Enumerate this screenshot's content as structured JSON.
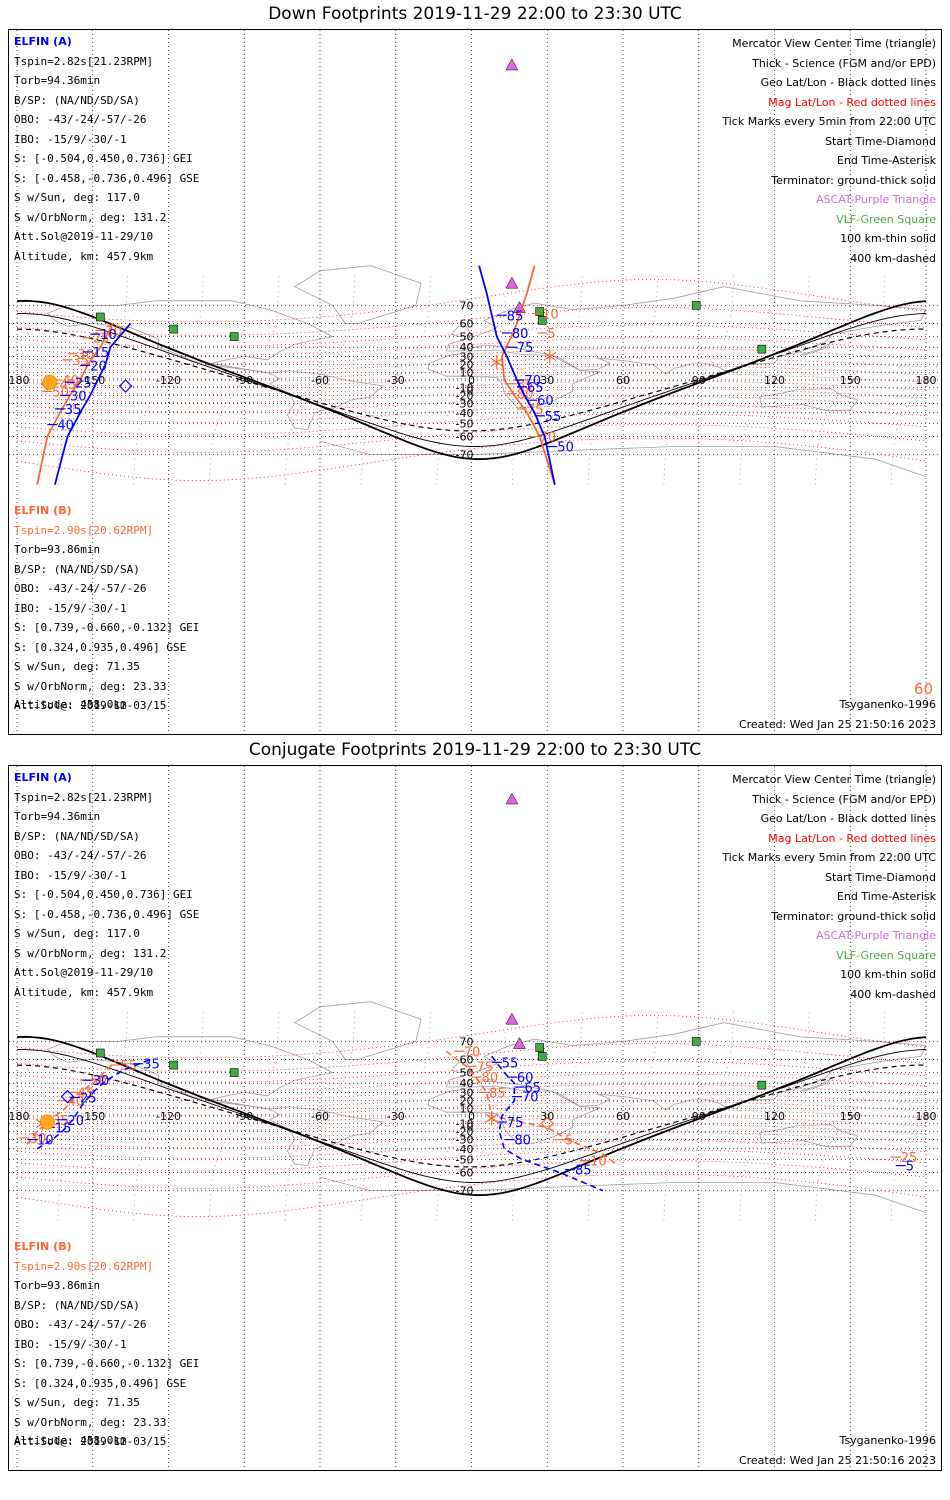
{
  "colors": {
    "elfin_a": "#0000ff",
    "elfin_b": "#ff6633",
    "mag_grid": "#ff0000",
    "geo_grid": "#000000",
    "ascat": "#dd66dd",
    "vlf": "#44aa44",
    "land": "#a0a0a0"
  },
  "panels": [
    {
      "id": "down",
      "title": "Down Footprints 2019-11-29 22:00 to 23:30 UTC",
      "elfin_a": {
        "head": "ELFIN (A)",
        "lines": [
          "Tspin=2.82s[21.23RPM]",
          "Torb=94.36min",
          "B/SP: (NA/ND/SD/SA)",
          "OBO: -43/-24/-57/-26",
          "IBO: -15/9/-30/-1",
          "S: [-0.504,0.450,0.736] GEI",
          "S: [-0.458,-0.736,0.496] GSE",
          "S w/Sun, deg: 117.0",
          "S w/OrbNorm, deg: 131.2",
          "Att.Sol@2019-11-29/10",
          "Altitude, km: 457.9km"
        ]
      },
      "elfin_b": {
        "head": "ELFIN (B)",
        "lines": [
          "Tspin=2.90s[20.62RPM]",
          "Torb=93.86min",
          "B/SP: (NA/ND/SD/SA)",
          "OBO: -43/-24/-57/-26",
          "IBO: -15/9/-30/-1",
          "S: [0.739,-0.660,-0.132] GEI",
          "S: [0.324,0.935,0.496] GSE",
          "S w/Sun, deg: 71.35",
          "S w/OrbNorm, deg: 23.33",
          "Att.Sol@: 2019-12-03/15",
          "Altitude: 458.0km"
        ]
      },
      "corner_label": "60",
      "track_a": {
        "lon": [
          -165,
          -160,
          -155,
          -151,
          -148,
          -145,
          -143,
          -135,
          3,
          6,
          10,
          14,
          18,
          21,
          25,
          29,
          33
        ],
        "lat": [
          -80,
          -60,
          -40,
          -20,
          0,
          20,
          40,
          60,
          90,
          75,
          50,
          30,
          0,
          -20,
          -40,
          -60,
          -80
        ],
        "ticks": [
          {
            "lon": -149,
            "lat": 52,
            "t": "10"
          },
          {
            "lon": -152,
            "lat": 35,
            "t": "15"
          },
          {
            "lon": -153,
            "lat": 19,
            "t": "20"
          },
          {
            "lon": -159,
            "lat": -3,
            "t": "25"
          },
          {
            "lon": -161,
            "lat": -20,
            "t": "30"
          },
          {
            "lon": -163,
            "lat": -36,
            "t": "35"
          },
          {
            "lon": -166,
            "lat": -51,
            "t": "40"
          },
          {
            "lon": 12,
            "lat": 65,
            "t": "85"
          },
          {
            "lon": 14,
            "lat": 53,
            "t": "80"
          },
          {
            "lon": 16,
            "lat": 40,
            "t": "75"
          },
          {
            "lon": 19,
            "lat": 0,
            "t": "70"
          },
          {
            "lon": 20,
            "lat": -9,
            "t": "65"
          },
          {
            "lon": 24,
            "lat": -26,
            "t": "60"
          },
          {
            "lon": 27,
            "lat": -43,
            "t": "55"
          },
          {
            "lon": 32,
            "lat": -66,
            "t": "50"
          }
        ]
      },
      "track_b": {
        "lon": [
          -172,
          -168,
          -163,
          -159,
          -155,
          -152,
          -147,
          -142,
          25,
          22,
          17,
          12,
          13,
          17,
          22,
          27,
          33
        ],
        "lat": [
          -80,
          -60,
          -40,
          -20,
          0,
          20,
          40,
          60,
          90,
          75,
          55,
          30,
          0,
          -20,
          -40,
          -60,
          -80
        ],
        "ticks": [
          {
            "lon": -147,
            "lat": 55,
            "t": "20"
          },
          {
            "lon": -152,
            "lat": 49,
            "t": "25"
          },
          {
            "lon": -158,
            "lat": 33,
            "t": "30"
          },
          {
            "lon": -160,
            "lat": 26,
            "t": "35"
          },
          {
            "lon": -164,
            "lat": 0,
            "t": "40"
          },
          {
            "lon": -165,
            "lat": -5,
            "t": "45"
          },
          {
            "lon": -168,
            "lat": -15,
            "t": "50"
          },
          {
            "lon": 26,
            "lat": 66,
            "t": "10"
          },
          {
            "lon": 28,
            "lat": 53,
            "t": "5"
          },
          {
            "lon": 16,
            "lat": -5,
            "t": "85"
          },
          {
            "lon": 16,
            "lat": -18,
            "t": "80"
          },
          {
            "lon": 20,
            "lat": -36,
            "t": "75"
          },
          {
            "lon": 25,
            "lat": -60,
            "t": "70"
          }
        ]
      },
      "start_a": {
        "lon": -137,
        "lat": -8
      },
      "start_b": {
        "lon": -168,
        "lat": -5
      },
      "asterisk_a": {
        "lon": 10,
        "lat": 23
      },
      "asterisk_b": {
        "lon": 31,
        "lat": 30
      }
    },
    {
      "id": "conj",
      "title": "Conjugate Footprints 2019-11-29 22:00 to 23:30 UTC",
      "elfin_a": {
        "head": "ELFIN (A)",
        "lines": [
          "Tspin=2.82s[21.23RPM]",
          "Torb=94.36min",
          "B/SP: (NA/ND/SD/SA)",
          "OBO: -43/-24/-57/-26",
          "IBO: -15/9/-30/-1",
          "S: [-0.504,0.450,0.736] GEI",
          "S: [-0.458,-0.736,0.496] GSE",
          "S w/Sun, deg: 117.0",
          "S w/OrbNorm, deg: 131.2",
          "Att.Sol@2019-11-29/10",
          "Altitude, km: 457.9km"
        ]
      },
      "elfin_b": {
        "head": "ELFIN (B)",
        "lines": [
          "Tspin=2.90s[20.62RPM]",
          "Torb=93.86min",
          "B/SP: (NA/ND/SD/SA)",
          "OBO: -43/-24/-57/-26",
          "IBO: -15/9/-30/-1",
          "S: [0.739,-0.660,-0.132] GEI",
          "S: [0.324,0.935,0.496] GSE",
          "S w/Sun, deg: 71.35",
          "S w/OrbNorm, deg: 23.33",
          "Att.Sol@: 2019-12-03/15",
          "Altitude: 458.0km"
        ]
      },
      "corner_label": "",
      "track_a": {
        "lon": [
          -172,
          -166,
          -162,
          -158,
          -154,
          -150,
          -145,
          -138,
          -127,
          8,
          13,
          17,
          17,
          12,
          11,
          13,
          20,
          35,
          52
        ],
        "lat": [
          -40,
          -30,
          -20,
          -5,
          15,
          30,
          42,
          52,
          60,
          62,
          50,
          40,
          20,
          0,
          -20,
          -40,
          -50,
          -60,
          -70
        ],
        "ticks": [
          {
            "lon": -132,
            "lat": 57,
            "t": "35"
          },
          {
            "lon": -152,
            "lat": 43,
            "t": "30"
          },
          {
            "lon": -157,
            "lat": 24,
            "t": "25"
          },
          {
            "lon": -162,
            "lat": -5,
            "t": "20"
          },
          {
            "lon": -167,
            "lat": -15,
            "t": "15"
          },
          {
            "lon": -174,
            "lat": -30,
            "t": "10"
          },
          {
            "lon": 10,
            "lat": 58,
            "t": "55"
          },
          {
            "lon": 16,
            "lat": 46,
            "t": "60"
          },
          {
            "lon": 19,
            "lat": 36,
            "t": "65"
          },
          {
            "lon": 18,
            "lat": 25,
            "t": "70"
          },
          {
            "lon": 12,
            "lat": -8,
            "t": "75"
          },
          {
            "lon": 15,
            "lat": -30,
            "t": "80"
          },
          {
            "lon": 39,
            "lat": -58,
            "t": "85"
          },
          {
            "lon": 170,
            "lat": -55,
            "t": "5"
          }
        ]
      },
      "track_b": {
        "lon": [
          -176,
          -172,
          -167,
          -161,
          -156,
          -150,
          -143,
          -140,
          -10,
          -2,
          2,
          6,
          8,
          30,
          38,
          52,
          58
        ],
        "lat": [
          -35,
          -20,
          -5,
          10,
          28,
          40,
          55,
          60,
          65,
          55,
          45,
          30,
          0,
          -15,
          -30,
          -45,
          -55
        ],
        "ticks": [
          {
            "lon": -141,
            "lat": 56,
            "t": "55"
          },
          {
            "lon": -153,
            "lat": 43,
            "t": "50"
          },
          {
            "lon": -158,
            "lat": 30,
            "t": "45"
          },
          {
            "lon": -162,
            "lat": 20,
            "t": "40"
          },
          {
            "lon": -168,
            "lat": -5,
            "t": "35"
          },
          {
            "lon": -177,
            "lat": -28,
            "t": "30"
          },
          {
            "lon": -5,
            "lat": 65,
            "t": "70"
          },
          {
            "lon": 0,
            "lat": 55,
            "t": "75"
          },
          {
            "lon": 2,
            "lat": 46,
            "t": "80"
          },
          {
            "lon": 5,
            "lat": 30,
            "t": "85"
          },
          {
            "lon": 35,
            "lat": -30,
            "t": "5"
          },
          {
            "lon": 45,
            "lat": -51,
            "t": "10"
          },
          {
            "lon": 168,
            "lat": -48,
            "t": "25"
          }
        ]
      },
      "start_a": {
        "lon": -160,
        "lat": 25
      },
      "start_b": {
        "lon": 30,
        "lat": -10
      },
      "asterisk_a": {
        "lon": 8,
        "lat": -3
      },
      "asterisk_b": {
        "lon": -170,
        "lat": -10
      }
    }
  ],
  "right_legend": [
    {
      "t": "Mercator View Center Time (triangle)",
      "c": "#000000"
    },
    {
      "t": "Thick - Science (FGM and/or EPD)",
      "c": "#000000"
    },
    {
      "t": "Geo Lat/Lon - Black dotted lines",
      "c": "#000000"
    },
    {
      "t": "Mag Lat/Lon - Red dotted lines",
      "c": "#ff0000"
    },
    {
      "t": "Tick Marks every 5min from 22:00 UTC",
      "c": "#000000"
    },
    {
      "t": "Start Time-Diamond",
      "c": "#000000"
    },
    {
      "t": "End Time-Asterisk",
      "c": "#000000"
    },
    {
      "t": "Terminator: ground-thick solid",
      "c": "#000000"
    },
    {
      "t": "ASCAT-Purple Triangle",
      "c": "#dd66dd"
    },
    {
      "t": "VLF-Green Square",
      "c": "#44aa44"
    },
    {
      "t": "100 km-thin solid",
      "c": "#000000"
    },
    {
      "t": "400 km-dashed",
      "c": "#000000"
    }
  ],
  "lon_labels": [
    "-180",
    "-150",
    "-120",
    "-90",
    "-60",
    "-30",
    "0",
    "30",
    "60",
    "90",
    "120",
    "150",
    "180"
  ],
  "lat_labels": [
    "70",
    "60",
    "50",
    "40",
    "30",
    "20",
    "10",
    "0",
    "-10",
    "-20",
    "-30",
    "-40",
    "-50",
    "-60",
    "-70"
  ],
  "model": "Tsyganenko-1996",
  "created": "Created: Wed Jan 25 21:50:16 2023",
  "ascat_sites": [
    {
      "lon": 16,
      "lat": 78
    },
    {
      "lon": 19,
      "lat": 69
    }
  ],
  "vlf_sites": [
    {
      "lon": -147,
      "lat": 64
    },
    {
      "lon": -118,
      "lat": 56
    },
    {
      "lon": -94,
      "lat": 50
    },
    {
      "lon": 27,
      "lat": 67
    },
    {
      "lon": 28,
      "lat": 62
    },
    {
      "lon": 89,
      "lat": 70
    },
    {
      "lon": 115,
      "lat": 38
    }
  ]
}
